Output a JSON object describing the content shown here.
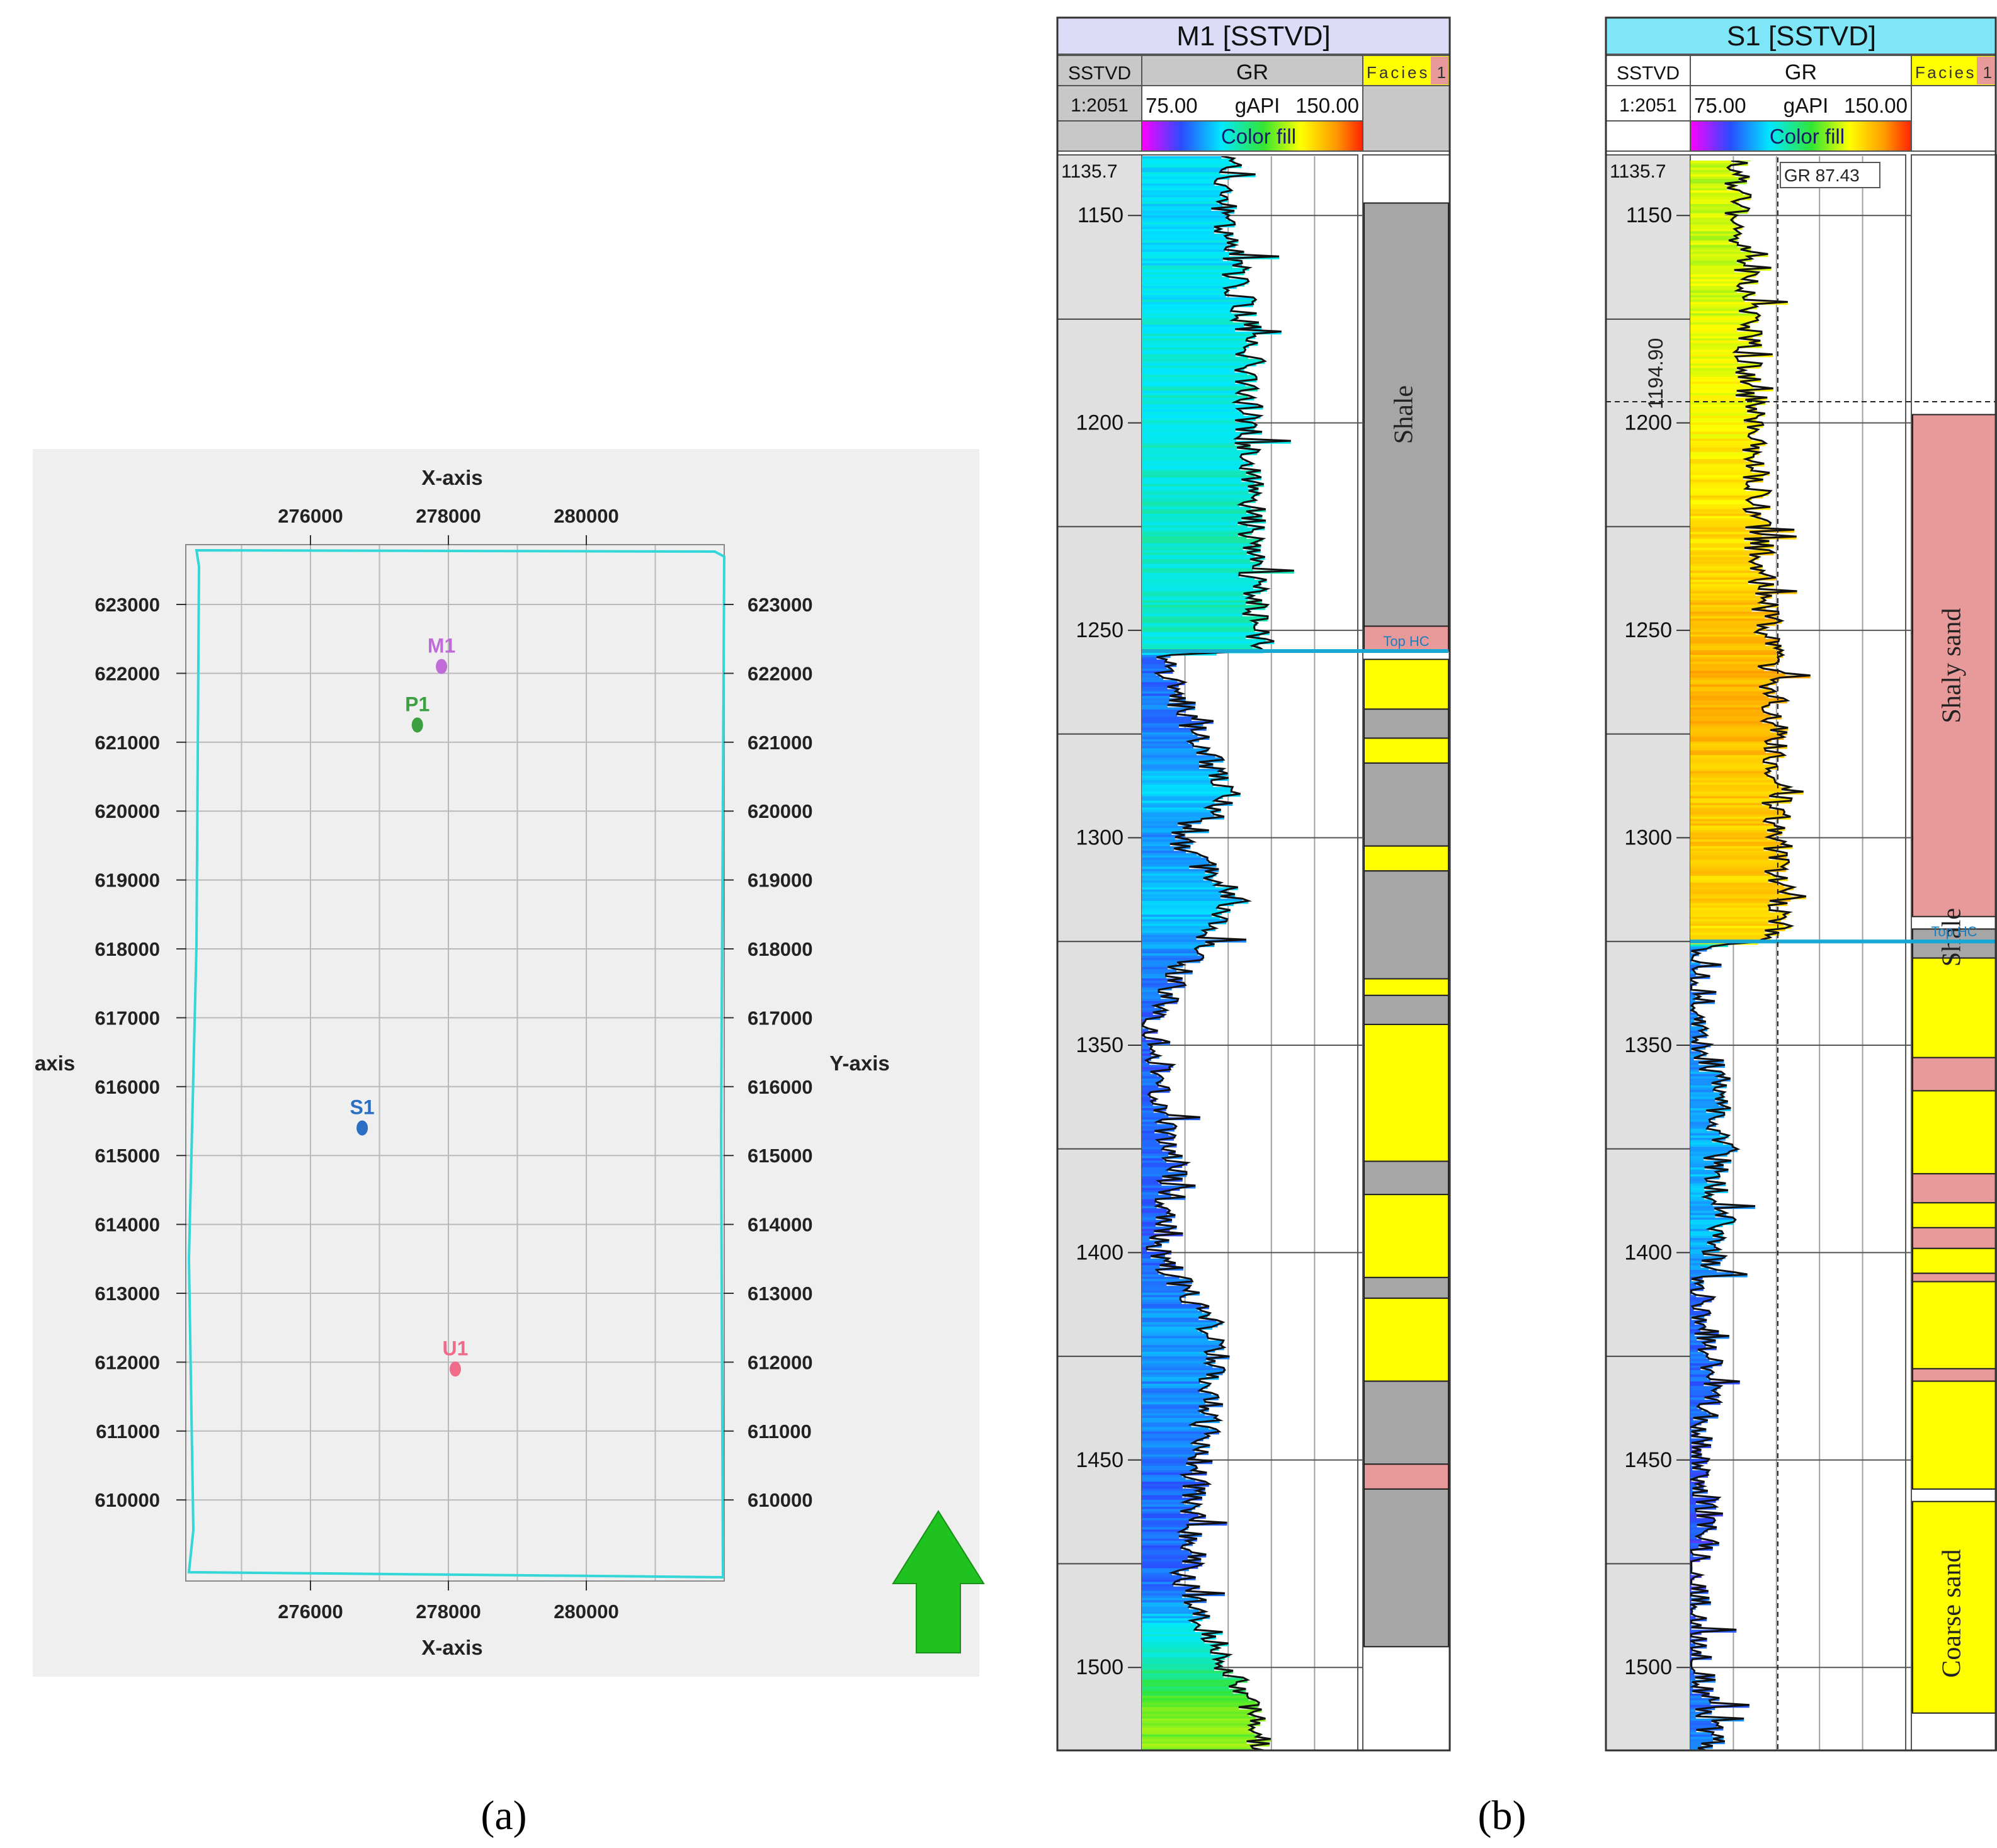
{
  "panel_a": {
    "caption": "(a)",
    "x_axis_label": "X-axis",
    "y_axis_label": "Y-axis",
    "y_axis_label_cut": "axis",
    "x_ticks": [
      {
        "label": "276000",
        "value": 276000
      },
      {
        "label": "278000",
        "value": 278000
      },
      {
        "label": "280000",
        "value": 280000
      }
    ],
    "y_ticks": [
      {
        "label": "623000",
        "value": 623000
      },
      {
        "label": "622000",
        "value": 622000
      },
      {
        "label": "621000",
        "value": 621000
      },
      {
        "label": "620000",
        "value": 620000
      },
      {
        "label": "619000",
        "value": 619000
      },
      {
        "label": "618000",
        "value": 618000
      },
      {
        "label": "617000",
        "value": 617000
      },
      {
        "label": "616000",
        "value": 616000
      },
      {
        "label": "615000",
        "value": 615000
      },
      {
        "label": "614000",
        "value": 614000
      },
      {
        "label": "613000",
        "value": 613000
      },
      {
        "label": "612000",
        "value": 612000
      },
      {
        "label": "611000",
        "value": 611000
      },
      {
        "label": "610000",
        "value": 610000
      }
    ],
    "wells": [
      {
        "name": "M1",
        "x": 277900,
        "y": 622100,
        "color": "#c06cd8"
      },
      {
        "name": "P1",
        "x": 277550,
        "y": 621250,
        "color": "#3aa040"
      },
      {
        "name": "S1",
        "x": 276750,
        "y": 615400,
        "color": "#2a6fc4"
      },
      {
        "name": "U1",
        "x": 278100,
        "y": 611900,
        "color": "#f06a8a"
      }
    ],
    "colors": {
      "boundary": "#35d6d8",
      "grid": "#b9b9b9",
      "background": "#efefef",
      "north_arrow": "#1fc21f"
    }
  },
  "panel_b": {
    "caption": "(b)",
    "logs": [
      {
        "title": "M1 [SSTVD]",
        "title_bg": "#dcdcf8",
        "header_bg": "#c8c8c8",
        "depth_col_label": "SSTVD",
        "scale": "1:2051",
        "gr_label": "GR",
        "gr_min": "75.00",
        "gr_unit": "gAPI",
        "gr_max": "150.00",
        "fill_label": "Color fill",
        "facies_label": "Facies 1",
        "top_depth": "1135.7",
        "depth_ticks": [
          "1150",
          "1200",
          "1250",
          "1300",
          "1350",
          "1400",
          "1450",
          "1500"
        ],
        "tick_values": [
          1150,
          1200,
          1250,
          1300,
          1350,
          1400,
          1450,
          1500
        ],
        "marker_label": "Top HC",
        "marker_depth": 1255,
        "facies_text": [
          {
            "label": "Shale",
            "top": 1147,
            "base": 1249
          }
        ],
        "facies": [
          {
            "top": 1135.7,
            "base": 1147,
            "type": "none"
          },
          {
            "top": 1147,
            "base": 1249,
            "type": "shale"
          },
          {
            "top": 1249,
            "base": 1255,
            "type": "shaly"
          },
          {
            "top": 1255,
            "base": 1257,
            "type": "none"
          },
          {
            "top": 1257,
            "base": 1269,
            "type": "sand"
          },
          {
            "top": 1269,
            "base": 1276,
            "type": "shale"
          },
          {
            "top": 1276,
            "base": 1282,
            "type": "sand"
          },
          {
            "top": 1282,
            "base": 1302,
            "type": "shale"
          },
          {
            "top": 1302,
            "base": 1308,
            "type": "sand"
          },
          {
            "top": 1308,
            "base": 1334,
            "type": "shale"
          },
          {
            "top": 1334,
            "base": 1338,
            "type": "sand"
          },
          {
            "top": 1338,
            "base": 1345,
            "type": "shale"
          },
          {
            "top": 1345,
            "base": 1378,
            "type": "sand"
          },
          {
            "top": 1378,
            "base": 1386,
            "type": "shale"
          },
          {
            "top": 1386,
            "base": 1406,
            "type": "sand"
          },
          {
            "top": 1406,
            "base": 1411,
            "type": "shale"
          },
          {
            "top": 1411,
            "base": 1431,
            "type": "sand"
          },
          {
            "top": 1431,
            "base": 1451,
            "type": "shale"
          },
          {
            "top": 1451,
            "base": 1457,
            "type": "shaly"
          },
          {
            "top": 1457,
            "base": 1495,
            "type": "shale"
          },
          {
            "top": 1495,
            "base": 1520,
            "type": "none"
          }
        ],
        "gr_profile": [
          {
            "d": 1135.7,
            "v": 0.4,
            "tint": 0.35
          },
          {
            "d": 1150,
            "v": 0.38,
            "tint": 0.35
          },
          {
            "d": 1180,
            "v": 0.5,
            "tint": 0.38
          },
          {
            "d": 1210,
            "v": 0.5,
            "tint": 0.4
          },
          {
            "d": 1240,
            "v": 0.52,
            "tint": 0.42
          },
          {
            "d": 1255,
            "v": 0.55,
            "tint": 0.4
          },
          {
            "d": 1256,
            "v": 0.08,
            "tint": 0.2
          },
          {
            "d": 1275,
            "v": 0.25,
            "tint": 0.25
          },
          {
            "d": 1290,
            "v": 0.4,
            "tint": 0.33
          },
          {
            "d": 1300,
            "v": 0.15,
            "tint": 0.25
          },
          {
            "d": 1315,
            "v": 0.45,
            "tint": 0.33
          },
          {
            "d": 1330,
            "v": 0.2,
            "tint": 0.25
          },
          {
            "d": 1345,
            "v": 0.05,
            "tint": 0.2
          },
          {
            "d": 1380,
            "v": 0.15,
            "tint": 0.22
          },
          {
            "d": 1400,
            "v": 0.08,
            "tint": 0.2
          },
          {
            "d": 1420,
            "v": 0.35,
            "tint": 0.28
          },
          {
            "d": 1440,
            "v": 0.3,
            "tint": 0.25
          },
          {
            "d": 1455,
            "v": 0.25,
            "tint": 0.22
          },
          {
            "d": 1480,
            "v": 0.2,
            "tint": 0.22
          },
          {
            "d": 1495,
            "v": 0.35,
            "tint": 0.4
          },
          {
            "d": 1510,
            "v": 0.5,
            "tint": 0.6
          },
          {
            "d": 1520,
            "v": 0.55,
            "tint": 0.62
          }
        ]
      },
      {
        "title": "S1 [SSTVD]",
        "title_bg": "#7fe6f7",
        "header_bg": "#ffffff",
        "depth_col_label": "SSTVD",
        "scale": "1:2051",
        "gr_label": "GR",
        "gr_min": "75.00",
        "gr_unit": "gAPI",
        "gr_max": "150.00",
        "fill_label": "Color fill",
        "facies_label": "Facies 1",
        "top_depth": "1135.7",
        "depth_ticks": [
          "1150",
          "1200",
          "1250",
          "1300",
          "1350",
          "1400",
          "1450",
          "1500"
        ],
        "tick_values": [
          1150,
          1200,
          1250,
          1300,
          1350,
          1400,
          1450,
          1500
        ],
        "readout": "GR 87.43",
        "cursor_depth": 1194.9,
        "cursor_depth_label": "1194.90",
        "marker_label": "Top HC",
        "marker_depth": 1325,
        "facies_text": [
          {
            "label": "Shaly sand",
            "top": 1198,
            "base": 1319
          },
          {
            "label": "Shale",
            "top": 1320,
            "base": 1328
          },
          {
            "label": "Coarse sand",
            "top": 1463,
            "base": 1511
          }
        ],
        "facies": [
          {
            "top": 1135.7,
            "base": 1198,
            "type": "none"
          },
          {
            "top": 1198,
            "base": 1319,
            "type": "shaly"
          },
          {
            "top": 1319,
            "base": 1322,
            "type": "none"
          },
          {
            "top": 1322,
            "base": 1329,
            "type": "shale"
          },
          {
            "top": 1329,
            "base": 1353,
            "type": "sand"
          },
          {
            "top": 1353,
            "base": 1361,
            "type": "shaly"
          },
          {
            "top": 1361,
            "base": 1381,
            "type": "sand"
          },
          {
            "top": 1381,
            "base": 1388,
            "type": "shaly"
          },
          {
            "top": 1388,
            "base": 1394,
            "type": "sand"
          },
          {
            "top": 1394,
            "base": 1399,
            "type": "shaly"
          },
          {
            "top": 1399,
            "base": 1405,
            "type": "sand"
          },
          {
            "top": 1405,
            "base": 1407,
            "type": "shaly"
          },
          {
            "top": 1407,
            "base": 1428,
            "type": "sand"
          },
          {
            "top": 1428,
            "base": 1431,
            "type": "shaly"
          },
          {
            "top": 1431,
            "base": 1457,
            "type": "sand"
          },
          {
            "top": 1457,
            "base": 1460,
            "type": "none"
          },
          {
            "top": 1460,
            "base": 1511,
            "type": "sand"
          },
          {
            "top": 1511,
            "base": 1520,
            "type": "none"
          }
        ],
        "gr_profile": [
          {
            "d": 1135.7,
            "v": 0.2,
            "tint": 0.68
          },
          {
            "d": 1160,
            "v": 0.25,
            "tint": 0.68
          },
          {
            "d": 1195,
            "v": 0.28,
            "tint": 0.72
          },
          {
            "d": 1230,
            "v": 0.32,
            "tint": 0.78
          },
          {
            "d": 1260,
            "v": 0.38,
            "tint": 0.84
          },
          {
            "d": 1290,
            "v": 0.4,
            "tint": 0.8
          },
          {
            "d": 1315,
            "v": 0.42,
            "tint": 0.8
          },
          {
            "d": 1325,
            "v": 0.38,
            "tint": 0.75
          },
          {
            "d": 1326,
            "v": 0.04,
            "tint": 0.25
          },
          {
            "d": 1350,
            "v": 0.05,
            "tint": 0.25
          },
          {
            "d": 1360,
            "v": 0.15,
            "tint": 0.28
          },
          {
            "d": 1380,
            "v": 0.12,
            "tint": 0.3
          },
          {
            "d": 1395,
            "v": 0.15,
            "tint": 0.3
          },
          {
            "d": 1410,
            "v": 0.05,
            "tint": 0.22
          },
          {
            "d": 1430,
            "v": 0.1,
            "tint": 0.22
          },
          {
            "d": 1450,
            "v": 0.02,
            "tint": 0.2
          },
          {
            "d": 1465,
            "v": 0.1,
            "tint": 0.18
          },
          {
            "d": 1480,
            "v": 0.02,
            "tint": 0.18
          },
          {
            "d": 1505,
            "v": 0.06,
            "tint": 0.22
          },
          {
            "d": 1520,
            "v": 0.1,
            "tint": 0.25
          }
        ]
      }
    ]
  }
}
